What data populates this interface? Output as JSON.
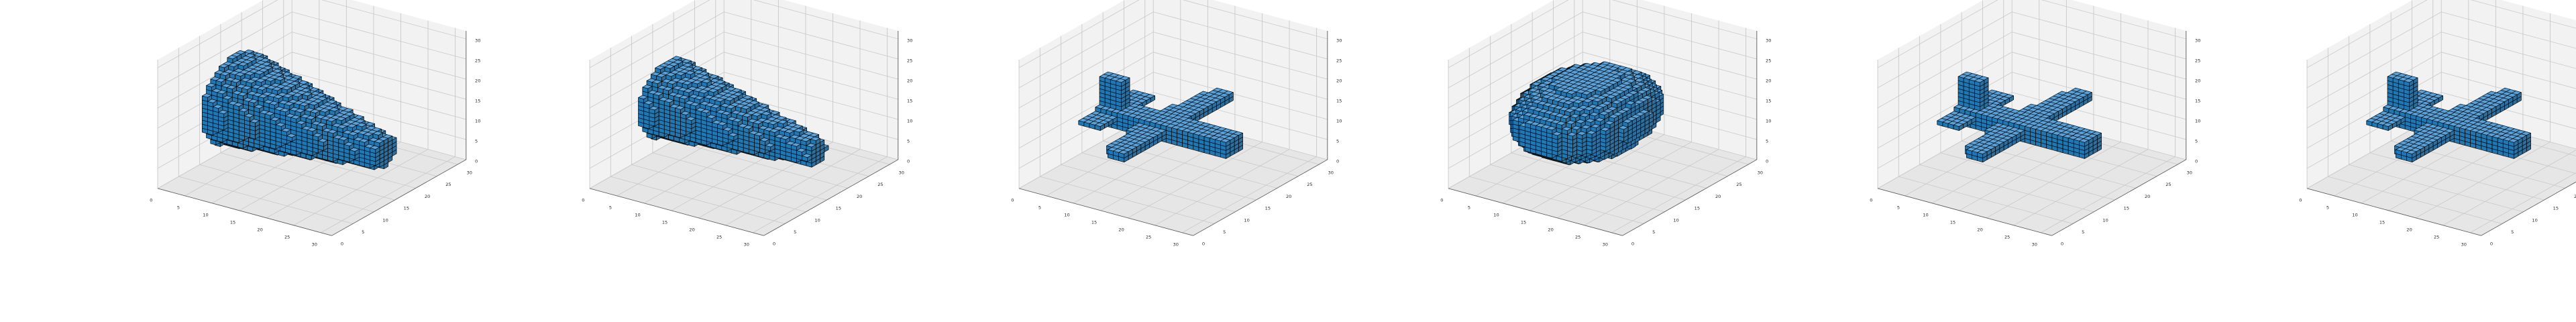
{
  "figure": {
    "background": "#ffffff"
  },
  "style": {
    "voxel_face": "#1f77b4",
    "voxel_edge": "#000000",
    "pane_side": "#f2f2f2",
    "pane_floor": "#e6e6e6",
    "grid": "#c8c8c8",
    "axis_line": "#555555",
    "text": "#262626"
  },
  "chart_data": [
    {
      "type": "voxels-3d",
      "shape": "fuselage",
      "x_ticks": [
        "0",
        "5",
        "10",
        "15",
        "20",
        "25",
        "30"
      ],
      "y_ticks": [
        "0",
        "5",
        "10",
        "15",
        "20",
        "25",
        "30"
      ],
      "z_ticks": [
        "0",
        "5",
        "10",
        "15",
        "20",
        "25",
        "30"
      ],
      "xlim": [
        0,
        32
      ],
      "ylim": [
        0,
        32
      ],
      "zlim": [
        0,
        32
      ],
      "grid": true
    },
    {
      "type": "voxels-3d",
      "shape": "fuselage-small",
      "x_ticks": [
        "0",
        "5",
        "10",
        "15",
        "20",
        "25",
        "30"
      ],
      "y_ticks": [
        "0",
        "5",
        "10",
        "15",
        "20",
        "25",
        "30"
      ],
      "z_ticks": [
        "0",
        "5",
        "10",
        "15",
        "20",
        "25",
        "30"
      ],
      "xlim": [
        0,
        32
      ],
      "ylim": [
        0,
        32
      ],
      "zlim": [
        0,
        32
      ],
      "grid": true
    },
    {
      "type": "voxels-3d",
      "shape": "airplane",
      "x_ticks": [
        "0",
        "5",
        "10",
        "15",
        "20",
        "25",
        "30"
      ],
      "y_ticks": [
        "0",
        "5",
        "10",
        "15",
        "20",
        "25",
        "30"
      ],
      "z_ticks": [
        "0",
        "5",
        "10",
        "15",
        "20",
        "25",
        "30"
      ],
      "xlim": [
        0,
        32
      ],
      "ylim": [
        0,
        32
      ],
      "zlim": [
        0,
        32
      ],
      "grid": true
    },
    {
      "type": "voxels-3d",
      "shape": "blob",
      "x_ticks": [
        "0",
        "5",
        "10",
        "15",
        "20",
        "25",
        "30"
      ],
      "y_ticks": [
        "0",
        "5",
        "10",
        "15",
        "20",
        "25",
        "30"
      ],
      "z_ticks": [
        "0",
        "5",
        "10",
        "15",
        "20",
        "25",
        "30"
      ],
      "xlim": [
        0,
        32
      ],
      "ylim": [
        0,
        32
      ],
      "zlim": [
        0,
        32
      ],
      "grid": true
    },
    {
      "type": "voxels-3d",
      "shape": "airplane",
      "x_ticks": [
        "0",
        "5",
        "10",
        "15",
        "20",
        "25",
        "30"
      ],
      "y_ticks": [
        "0",
        "5",
        "10",
        "15",
        "20",
        "25",
        "30"
      ],
      "z_ticks": [
        "0",
        "5",
        "10",
        "15",
        "20",
        "25",
        "30"
      ],
      "xlim": [
        0,
        32
      ],
      "ylim": [
        0,
        32
      ],
      "zlim": [
        0,
        32
      ],
      "grid": true
    },
    {
      "type": "voxels-3d",
      "shape": "airplane",
      "x_ticks": [
        "0",
        "5",
        "10",
        "15",
        "20",
        "25",
        "30"
      ],
      "y_ticks": [
        "0",
        "5",
        "10",
        "15",
        "20",
        "25",
        "30"
      ],
      "z_ticks": [
        "0",
        "5",
        "10",
        "15",
        "20",
        "25",
        "30"
      ],
      "xlim": [
        0,
        32
      ],
      "ylim": [
        0,
        32
      ],
      "zlim": [
        0,
        32
      ],
      "grid": true
    }
  ]
}
